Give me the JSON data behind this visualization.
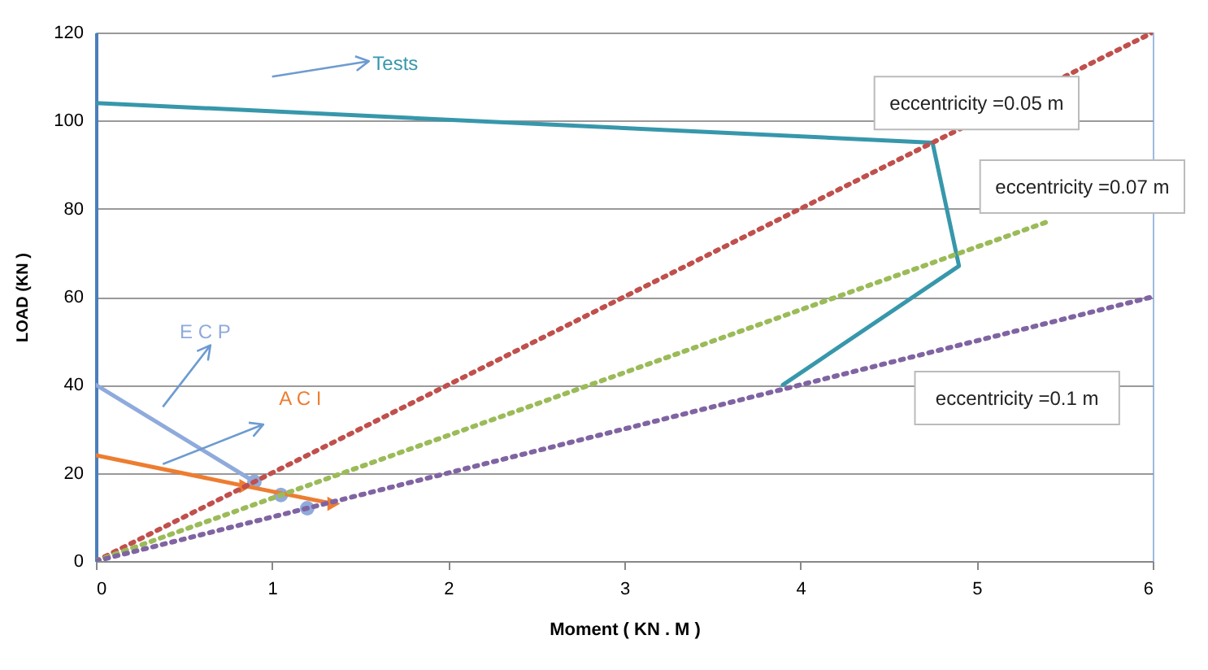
{
  "chart_data": {
    "type": "line",
    "xlabel": "Moment ( KN . M )",
    "ylabel": "LOAD (KN )",
    "xlim": [
      0,
      6
    ],
    "ylim": [
      0,
      120
    ],
    "xticks": [
      0,
      1,
      2,
      3,
      4,
      5,
      6
    ],
    "yticks": [
      0,
      20,
      40,
      60,
      80,
      100,
      120
    ],
    "grid": "y",
    "series": [
      {
        "name": "Tests",
        "color": "#3797ab",
        "x": [
          0,
          4.75,
          4.9,
          3.9
        ],
        "values": [
          104,
          95,
          67,
          40
        ]
      },
      {
        "name": "E C P",
        "color": "#8faadc",
        "x": [
          0,
          0.9
        ],
        "values": [
          40,
          18
        ]
      },
      {
        "type": "scatter",
        "marker": "circle",
        "color": "#8faadc",
        "x": [
          0.9,
          1.05,
          1.2
        ],
        "values": [
          18,
          15,
          12
        ]
      },
      {
        "name": "A C I",
        "color": "#ed7d31",
        "x": [
          0,
          0.85,
          1.35
        ],
        "values": [
          24,
          17,
          13
        ]
      },
      {
        "type": "scatter",
        "marker": "triangle",
        "color": "#ed7d31",
        "x": [
          0.85,
          1.35
        ],
        "values": [
          17,
          13
        ]
      },
      {
        "name": "eccentricity =0.05 m",
        "color": "#c0504d",
        "line_style": "dotted",
        "x": [
          0,
          6
        ],
        "values": [
          0,
          120
        ]
      },
      {
        "name": "eccentricity =0.07 m",
        "color": "#9bbb59",
        "line_style": "dotted",
        "x": [
          0,
          5.4
        ],
        "values": [
          0,
          77
        ]
      },
      {
        "name": "eccentricity =0.1 m",
        "color": "#8064a2",
        "line_style": "dotted",
        "x": [
          0,
          6
        ],
        "values": [
          0,
          60
        ]
      }
    ]
  }
}
